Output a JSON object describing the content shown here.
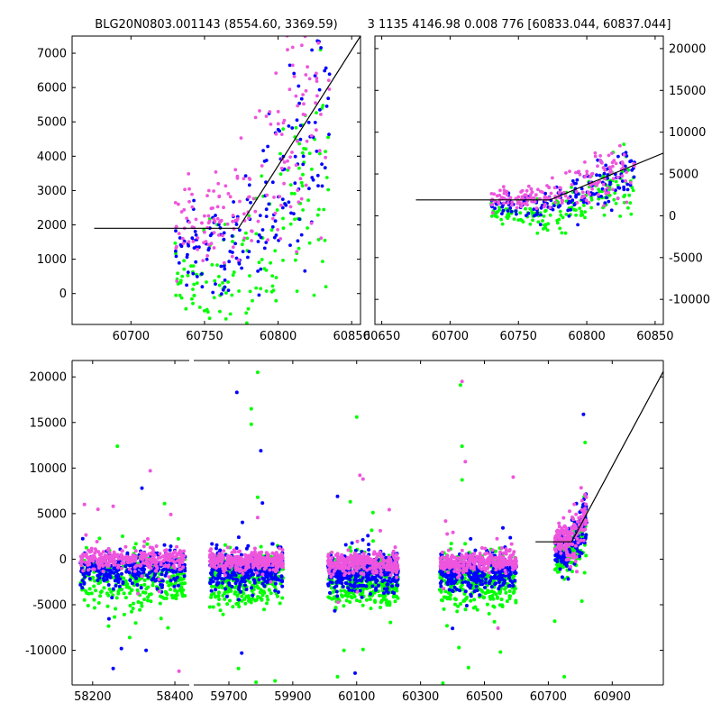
{
  "chart_data": {
    "type": "scatter",
    "title_left": "BLG20N0803.001143 (8554.60, 3369.59)",
    "title_right": "3 1135 4146.98 0.008 776 [60833.044, 60837.044]",
    "colors": {
      "green": "#00ff00",
      "blue": "#0000ff",
      "magenta": "#ee55dd",
      "model": "#000000"
    },
    "series_names": [
      "green",
      "blue",
      "magenta"
    ],
    "panels": [
      {
        "id": "top-left",
        "xlim": [
          60660,
          60856
        ],
        "ylim": [
          -900,
          7500
        ],
        "xticks": [
          60700,
          60750,
          60800,
          60850
        ],
        "yticks": [
          0,
          1000,
          2000,
          3000,
          4000,
          5000,
          6000,
          7000
        ],
        "ytick_side": "left",
        "model": [
          [
            60675,
            1900
          ],
          [
            60773,
            1900
          ],
          [
            60856,
            7500
          ]
        ]
      },
      {
        "id": "top-right",
        "xlim": [
          60645,
          60856
        ],
        "ylim": [
          -13000,
          21500
        ],
        "xticks": [
          60650,
          60700,
          60750,
          60800,
          60850
        ],
        "yticks": [
          -10000,
          -5000,
          0,
          5000,
          10000,
          15000,
          20000
        ],
        "ytick_side": "right",
        "model": [
          [
            60675,
            1900
          ],
          [
            60773,
            1900
          ],
          [
            60856,
            7500
          ]
        ]
      },
      {
        "id": "bottom",
        "broken_axis": true,
        "segments": [
          {
            "xlim": [
              58150,
              58435
            ],
            "xticks": [
              58200,
              58400
            ]
          },
          {
            "xlim": [
              59590,
              61060
            ],
            "xticks": [
              59700,
              59900,
              60100,
              60300,
              60500,
              60700,
              60900
            ]
          }
        ],
        "ylim": [
          -13800,
          21800
        ],
        "yticks": [
          -10000,
          -5000,
          0,
          5000,
          10000,
          15000,
          20000
        ],
        "ytick_side": "left",
        "model": [
          [
            60660,
            1900
          ],
          [
            60773,
            1900
          ],
          [
            61060,
            20600
          ]
        ],
        "seasons": [
          {
            "x_range": [
              58170,
              58425
            ],
            "center": [
              -2500,
              -1000,
              0
            ]
          },
          {
            "x_range": [
              59640,
              59870
            ],
            "center": [
              -2300,
              -1300,
              -200
            ]
          },
          {
            "x_range": [
              60010,
              60230
            ],
            "center": [
              -2300,
              -1400,
              -500
            ]
          },
          {
            "x_range": [
              60360,
              60600
            ],
            "center": [
              -2500,
              -1400,
              -300
            ]
          }
        ]
      }
    ],
    "outliers_bottom": [
      {
        "x": 58180,
        "y": 6000,
        "s": 2
      },
      {
        "x": 58250,
        "y": 5800,
        "s": 2
      },
      {
        "x": 58260,
        "y": 12400,
        "s": 0
      },
      {
        "x": 58320,
        "y": 7800,
        "s": 1
      },
      {
        "x": 58340,
        "y": 9700,
        "s": 2
      },
      {
        "x": 58375,
        "y": 6100,
        "s": 0
      },
      {
        "x": 58390,
        "y": 4900,
        "s": 2
      },
      {
        "x": 58410,
        "y": -12300,
        "s": 2
      },
      {
        "x": 58250,
        "y": -12000,
        "s": 1
      },
      {
        "x": 58270,
        "y": -9800,
        "s": 1
      },
      {
        "x": 58330,
        "y": -10000,
        "s": 1
      },
      {
        "x": 58290,
        "y": -8600,
        "s": 0
      },
      {
        "x": 59725,
        "y": 18300,
        "s": 1
      },
      {
        "x": 59790,
        "y": 20500,
        "s": 0
      },
      {
        "x": 59770,
        "y": 16500,
        "s": 0
      },
      {
        "x": 59770,
        "y": 14800,
        "s": 0
      },
      {
        "x": 59800,
        "y": 11900,
        "s": 1
      },
      {
        "x": 59790,
        "y": 6800,
        "s": 0
      },
      {
        "x": 59740,
        "y": -10300,
        "s": 1
      },
      {
        "x": 59730,
        "y": -12000,
        "s": 0
      },
      {
        "x": 59785,
        "y": -13500,
        "s": 0
      },
      {
        "x": 60100,
        "y": 15600,
        "s": 0
      },
      {
        "x": 60110,
        "y": 9200,
        "s": 2
      },
      {
        "x": 60120,
        "y": 8800,
        "s": 2
      },
      {
        "x": 60040,
        "y": 6900,
        "s": 1
      },
      {
        "x": 60080,
        "y": 6300,
        "s": 0
      },
      {
        "x": 60040,
        "y": -12900,
        "s": 0
      },
      {
        "x": 60095,
        "y": -12500,
        "s": 1
      },
      {
        "x": 60060,
        "y": -10000,
        "s": 0
      },
      {
        "x": 60120,
        "y": -9900,
        "s": 0
      },
      {
        "x": 60430,
        "y": 19500,
        "s": 2
      },
      {
        "x": 60425,
        "y": 19100,
        "s": 0
      },
      {
        "x": 60430,
        "y": 12400,
        "s": 0
      },
      {
        "x": 60440,
        "y": 10700,
        "s": 2
      },
      {
        "x": 60430,
        "y": 8700,
        "s": 0
      },
      {
        "x": 60590,
        "y": 9000,
        "s": 2
      },
      {
        "x": 60370,
        "y": -13600,
        "s": 0
      },
      {
        "x": 60450,
        "y": -11900,
        "s": 0
      },
      {
        "x": 60420,
        "y": -9700,
        "s": 0
      },
      {
        "x": 60400,
        "y": -7600,
        "s": 1
      },
      {
        "x": 60750,
        "y": -12900,
        "s": 0
      },
      {
        "x": 60720,
        "y": -6800,
        "s": 0
      },
      {
        "x": 60810,
        "y": 15900,
        "s": 1
      },
      {
        "x": 60815,
        "y": 12800,
        "s": 0
      },
      {
        "x": 60805,
        "y": -4600,
        "s": 0
      }
    ]
  }
}
